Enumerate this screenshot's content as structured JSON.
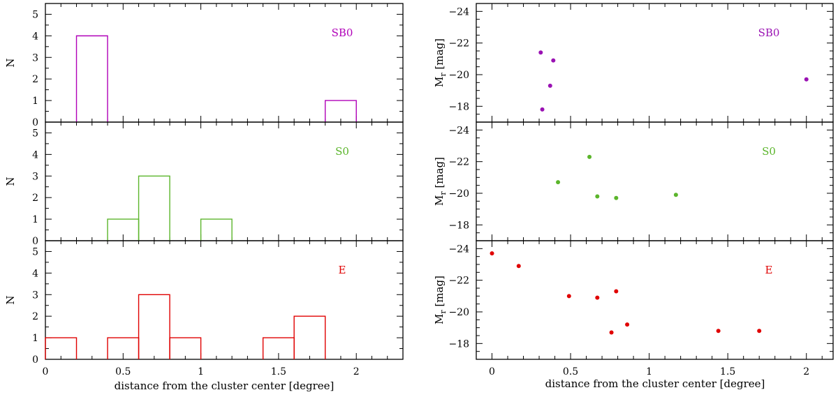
{
  "figure": {
    "left_xlabel": "distance from the cluster center [degree]",
    "right_xlabel": "distance from the cluster center [degree]",
    "left_ylabel": "N",
    "right_ylabel_main": "M",
    "right_ylabel_sub": "r",
    "right_ylabel_unit": " [mag]"
  },
  "chart_data": [
    {
      "type": "bar",
      "style": "step-histogram",
      "panel": "left-top",
      "label": "SB0",
      "color": "#b000b8",
      "bins": [
        [
          0.2,
          0.4,
          4
        ],
        [
          1.8,
          2.0,
          1
        ]
      ],
      "xlim": [
        0,
        2.3
      ],
      "ylim": [
        0,
        5.5
      ],
      "xticks": [
        0,
        0.5,
        1,
        1.5,
        2
      ],
      "yticks": [
        0,
        1,
        2,
        3,
        4,
        5
      ],
      "ylabel": "N"
    },
    {
      "type": "bar",
      "style": "step-histogram",
      "panel": "left-middle",
      "label": "S0",
      "color": "#5bb52b",
      "bins": [
        [
          0.4,
          0.6,
          1
        ],
        [
          0.6,
          0.8,
          3
        ],
        [
          1.0,
          1.2,
          1
        ]
      ],
      "xlim": [
        0,
        2.3
      ],
      "ylim": [
        0,
        5.5
      ],
      "xticks": [
        0,
        0.5,
        1,
        1.5,
        2
      ],
      "yticks": [
        0,
        1,
        2,
        3,
        4,
        5
      ],
      "ylabel": "N"
    },
    {
      "type": "bar",
      "style": "step-histogram",
      "panel": "left-bottom",
      "label": "E",
      "color": "#e00000",
      "bins": [
        [
          0.0,
          0.2,
          1
        ],
        [
          0.4,
          0.6,
          1
        ],
        [
          0.6,
          0.8,
          3
        ],
        [
          0.8,
          1.0,
          1
        ],
        [
          1.4,
          1.6,
          1
        ],
        [
          1.6,
          1.8,
          2
        ]
      ],
      "xlim": [
        0,
        2.3
      ],
      "ylim": [
        0,
        5.5
      ],
      "xticks": [
        0,
        0.5,
        1,
        1.5,
        2
      ],
      "xticklabels": [
        "0",
        "0.5",
        "1",
        "1.5",
        "2"
      ],
      "yticks": [
        0,
        1,
        2,
        3,
        4,
        5
      ],
      "xlabel": "distance from the cluster center [degree]",
      "ylabel": "N"
    },
    {
      "type": "scatter",
      "panel": "right-top",
      "label": "SB0",
      "color": "#9a12b3",
      "points": [
        [
          0.31,
          -21.4
        ],
        [
          0.39,
          -20.9
        ],
        [
          0.37,
          -19.3
        ],
        [
          0.32,
          -17.8
        ],
        [
          2.0,
          -19.7
        ]
      ],
      "xlim": [
        -0.1,
        2.17
      ],
      "ylim": [
        -24.5,
        -17
      ],
      "xticks": [
        0,
        0.5,
        1,
        1.5,
        2
      ],
      "yticks": [
        -24,
        -22,
        -20,
        -18
      ],
      "ylabel": "Mr [mag]"
    },
    {
      "type": "scatter",
      "panel": "right-middle",
      "label": "S0",
      "color": "#5bb52b",
      "points": [
        [
          0.42,
          -20.7
        ],
        [
          0.62,
          -22.3
        ],
        [
          0.67,
          -19.8
        ],
        [
          0.79,
          -19.7
        ],
        [
          1.17,
          -19.9
        ]
      ],
      "xlim": [
        -0.1,
        2.17
      ],
      "ylim": [
        -24.5,
        -17
      ],
      "xticks": [
        0,
        0.5,
        1,
        1.5,
        2
      ],
      "yticks": [
        -24,
        -22,
        -20,
        -18
      ],
      "ylabel": "Mr [mag]"
    },
    {
      "type": "scatter",
      "panel": "right-bottom",
      "label": "E",
      "color": "#e00000",
      "points": [
        [
          0.0,
          -23.7
        ],
        [
          0.17,
          -22.9
        ],
        [
          0.49,
          -21.0
        ],
        [
          0.67,
          -20.9
        ],
        [
          0.79,
          -21.3
        ],
        [
          0.76,
          -18.7
        ],
        [
          0.86,
          -19.2
        ],
        [
          1.44,
          -18.8
        ],
        [
          1.7,
          -18.8
        ]
      ],
      "xlim": [
        -0.1,
        2.17
      ],
      "ylim": [
        -24.5,
        -17
      ],
      "xticks": [
        0,
        0.5,
        1,
        1.5,
        2
      ],
      "xticklabels": [
        "0",
        "0.5",
        "1",
        "1.5",
        "2"
      ],
      "yticks": [
        -24,
        -22,
        -20,
        -18
      ],
      "xlabel": "distance from the cluster center [degree]",
      "ylabel": "Mr [mag]"
    }
  ]
}
